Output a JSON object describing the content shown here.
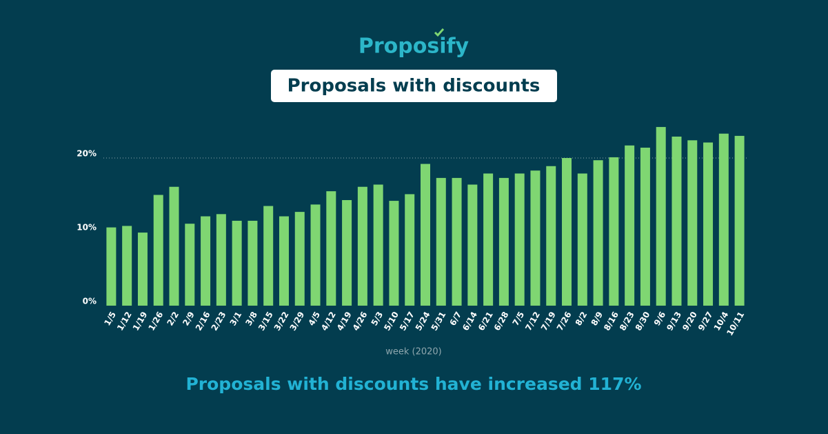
{
  "chart_data": {
    "type": "bar",
    "brand": "Proposify",
    "title": "Proposals with discounts",
    "x_label": "week (2020)",
    "annotation": "Proposals with discounts have increased 117%",
    "categories": [
      "1/5",
      "1/12",
      "1/19",
      "1/26",
      "2/2",
      "2/9",
      "2/16",
      "2/23",
      "3/1",
      "3/8",
      "3/15",
      "3/22",
      "3/29",
      "4/5",
      "4/12",
      "4/19",
      "4/26",
      "5/3",
      "5/10",
      "5/17",
      "5/24",
      "5/31",
      "6/7",
      "6/14",
      "6/21",
      "6/28",
      "7/5",
      "7/12",
      "7/19",
      "7/26",
      "8/2",
      "8/9",
      "8/16",
      "8/23",
      "8/30",
      "9/6",
      "9/13",
      "9/20",
      "9/27",
      "10/4",
      "10/11"
    ],
    "values": [
      10.6,
      10.8,
      9.9,
      15.0,
      16.1,
      11.1,
      12.1,
      12.4,
      11.5,
      11.5,
      13.5,
      12.1,
      12.7,
      13.7,
      15.5,
      14.3,
      16.1,
      16.4,
      14.2,
      15.1,
      19.2,
      17.3,
      17.3,
      16.4,
      17.9,
      17.3,
      17.9,
      18.3,
      18.9,
      20.0,
      17.9,
      19.7,
      20.1,
      21.7,
      21.4,
      24.2,
      22.9,
      22.4,
      22.1,
      23.3,
      23.0
    ],
    "color": "#7fd672",
    "ylim": [
      0,
      25
    ],
    "yticks": [
      {
        "value": 0,
        "label": "0%"
      },
      {
        "value": 10,
        "label": "10%"
      },
      {
        "value": 20,
        "label": "20%"
      }
    ],
    "reference_line": 20
  }
}
